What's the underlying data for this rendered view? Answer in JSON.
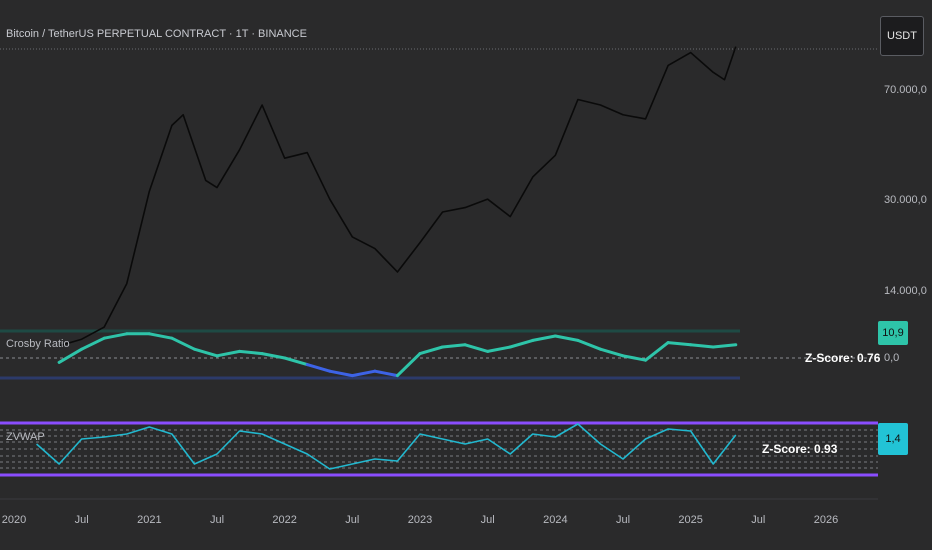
{
  "header": {
    "title": "Bitcoin / TetherUS PERPETUAL CONTRACT · 1T · BINANCE",
    "currency": "USDT"
  },
  "colors": {
    "background": "#2a2a2b",
    "price": "#0a0a0a",
    "crosby_line": "#2ec4a9",
    "crosby_low": "#3d63e6",
    "band_green": "#1e4a44",
    "band_blue": "#2c3a6a",
    "zvwap_line": "#22b8cf",
    "zvwap_band": "#8a4dff",
    "badge_teal": "#2ec4a9",
    "badge_cyan": "#22c3d6"
  },
  "price_axis": {
    "labels": [
      "70.000,0",
      "30.000,0",
      "14.000,0"
    ]
  },
  "crosby": {
    "label": "Crosby Ratio",
    "value_badge": "10,9",
    "zero_label": "0,0",
    "zscore_label": "Z-Score: 0.76"
  },
  "zvwap": {
    "label": "ZVWAP",
    "value_badge": "1,4",
    "zscore_label": "Z-Score: 0.93"
  },
  "x_axis": {
    "ticks": [
      "2020",
      "Jul",
      "2021",
      "Jul",
      "2022",
      "Jul",
      "2023",
      "Jul",
      "2024",
      "Jul",
      "2025",
      "Jul",
      "2026"
    ]
  },
  "chart_data": [
    {
      "type": "line",
      "scale": "log",
      "x": [
        "2020-05",
        "2020-07",
        "2020-09",
        "2020-11",
        "2021-01",
        "2021-03",
        "2021-04",
        "2021-06",
        "2021-07",
        "2021-09",
        "2021-11",
        "2022-01",
        "2022-03",
        "2022-05",
        "2022-07",
        "2022-09",
        "2022-11",
        "2023-01",
        "2023-03",
        "2023-05",
        "2023-07",
        "2023-09",
        "2023-11",
        "2024-01",
        "2024-03",
        "2024-05",
        "2024-07",
        "2024-09",
        "2024-11",
        "2025-01",
        "2025-03",
        "2025-04",
        "2025-05"
      ],
      "series": [
        {
          "values": [
            9000,
            9500,
            10500,
            15000,
            32000,
            55000,
            60000,
            35000,
            33000,
            45000,
            65000,
            42000,
            44000,
            30000,
            22000,
            20000,
            16500,
            21000,
            27000,
            28000,
            30000,
            26000,
            36000,
            43000,
            68000,
            65000,
            60000,
            58000,
            90000,
            100000,
            85000,
            80000,
            105000
          ]
        }
      ],
      "yticks": [
        14000,
        30000,
        70000
      ]
    },
    {
      "type": "line",
      "name": "Crosby Ratio",
      "x": [
        "2020-05",
        "2020-07",
        "2020-09",
        "2020-11",
        "2021-01",
        "2021-03",
        "2021-05",
        "2021-07",
        "2021-09",
        "2021-11",
        "2022-01",
        "2022-03",
        "2022-05",
        "2022-07",
        "2022-09",
        "2022-11",
        "2023-01",
        "2023-03",
        "2023-05",
        "2023-07",
        "2023-09",
        "2023-11",
        "2024-01",
        "2024-03",
        "2024-05",
        "2024-07",
        "2024-09",
        "2024-11",
        "2025-01",
        "2025-03",
        "2025-05"
      ],
      "series": [
        {
          "values": [
            -2,
            4,
            9,
            11,
            11,
            9,
            4,
            1,
            3,
            2,
            0,
            -3,
            -6,
            -8,
            -6,
            -8,
            2,
            5,
            6,
            3,
            5,
            8,
            10,
            8,
            4,
            1,
            -1,
            7,
            6,
            5,
            6
          ]
        }
      ],
      "last_value": 10.9,
      "zscore": 0.76
    },
    {
      "type": "line",
      "name": "ZVWAP",
      "x": [
        "2020-03",
        "2020-05",
        "2020-07",
        "2020-09",
        "2020-11",
        "2021-01",
        "2021-03",
        "2021-05",
        "2021-07",
        "2021-09",
        "2021-11",
        "2022-01",
        "2022-03",
        "2022-05",
        "2022-07",
        "2022-09",
        "2022-11",
        "2023-01",
        "2023-03",
        "2023-05",
        "2023-07",
        "2023-09",
        "2023-11",
        "2024-01",
        "2024-03",
        "2024-05",
        "2024-07",
        "2024-09",
        "2024-11",
        "2025-01",
        "2025-03",
        "2025-05"
      ],
      "series": [
        {
          "values": [
            0.5,
            -1.5,
            1,
            1.2,
            1.5,
            2.2,
            1.5,
            -1.5,
            -0.5,
            1.8,
            1.5,
            0.5,
            -0.5,
            -2,
            -1.5,
            -1,
            -1.2,
            1.5,
            1,
            0.5,
            1,
            -0.5,
            1.5,
            1.2,
            2.5,
            0.5,
            -1,
            1,
            2,
            1.8,
            -1.5,
            1.4
          ]
        }
      ],
      "last_value": 1.4,
      "zscore": 0.93
    }
  ]
}
